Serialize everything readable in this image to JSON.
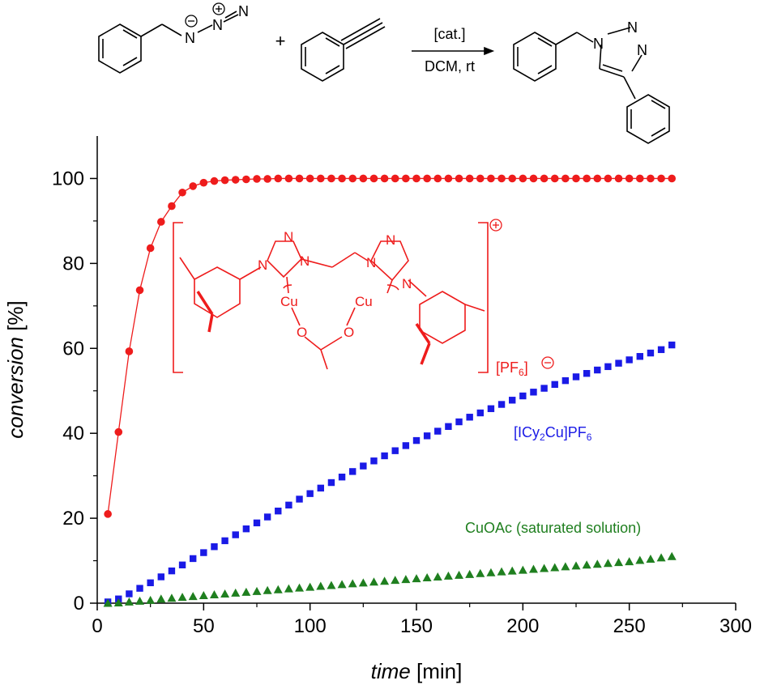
{
  "scheme": {
    "reagent_condition_top": "[cat.]",
    "reagent_condition_bottom": "DCM, rt",
    "plus": "+",
    "azide_atom_n1": "N",
    "azide_atom_n2": "N",
    "azide_atom_n3": "N",
    "product_n1": "N",
    "product_n2": "N",
    "product_n3": "N"
  },
  "catalyst_structure": {
    "cu_left": "Cu",
    "cu_right": "Cu",
    "o_left": "O",
    "o_right": "O",
    "n_labels": [
      "N",
      "N",
      "N",
      "N",
      "N",
      "N"
    ],
    "counterion": "[PF6]"
  },
  "colors": {
    "red": "#ee1c1c",
    "blue": "#1a1ae6",
    "green": "#1f7f1f",
    "black": "#000000"
  },
  "chart_data": {
    "type": "scatter",
    "xlabel": "time [min]",
    "ylabel": "conversion [%]",
    "xlim": [
      0,
      300
    ],
    "ylim": [
      0,
      110
    ],
    "xticks": [
      0,
      50,
      100,
      150,
      200,
      250,
      300
    ],
    "yticks": [
      0,
      20,
      40,
      60,
      80,
      100
    ],
    "grid": false,
    "series": [
      {
        "name": "[PF6]",
        "marker": "circle",
        "color": "#ee1c1c",
        "line": true,
        "x": [
          5,
          10,
          15,
          20,
          25,
          30,
          35,
          40,
          45,
          50,
          55,
          60,
          65,
          70,
          75,
          80,
          85,
          90,
          95,
          100,
          105,
          110,
          115,
          120,
          125,
          130,
          135,
          140,
          145,
          150,
          155,
          160,
          165,
          170,
          175,
          180,
          185,
          190,
          195,
          200,
          205,
          210,
          215,
          220,
          225,
          230,
          235,
          240,
          245,
          250,
          255,
          260,
          265,
          270
        ],
        "y": [
          21,
          40.3,
          59.3,
          73.7,
          83.6,
          89.8,
          93.5,
          96.7,
          98.2,
          99.0,
          99.4,
          99.6,
          99.7,
          99.8,
          99.9,
          99.9,
          100,
          100,
          100,
          100,
          100,
          100,
          100,
          100,
          100,
          100,
          100,
          100,
          100,
          100,
          100,
          100,
          100,
          100,
          100,
          100,
          100,
          100,
          100,
          100,
          100,
          100,
          100,
          100,
          100,
          100,
          100,
          100,
          100,
          100,
          100,
          100,
          100,
          100
        ]
      },
      {
        "name": "[ICy2Cu]PF6",
        "marker": "square",
        "color": "#1a1ae6",
        "line": false,
        "x": [
          5,
          10,
          15,
          20,
          25,
          30,
          35,
          40,
          45,
          50,
          55,
          60,
          65,
          70,
          75,
          80,
          85,
          90,
          95,
          100,
          105,
          110,
          115,
          120,
          125,
          130,
          135,
          140,
          145,
          150,
          155,
          160,
          165,
          170,
          175,
          180,
          185,
          190,
          195,
          200,
          205,
          210,
          215,
          220,
          225,
          230,
          235,
          240,
          245,
          250,
          255,
          260,
          265,
          270
        ],
        "y": [
          0.3,
          1.0,
          2.2,
          3.5,
          4.8,
          6.2,
          7.6,
          9.0,
          10.5,
          11.9,
          13.3,
          14.7,
          16.1,
          17.5,
          18.9,
          20.3,
          21.7,
          23.1,
          24.5,
          25.8,
          27.1,
          28.4,
          29.7,
          31.0,
          32.3,
          33.5,
          34.7,
          35.9,
          37.1,
          38.3,
          39.4,
          40.5,
          41.6,
          42.7,
          43.8,
          44.8,
          45.8,
          46.8,
          47.8,
          48.8,
          49.7,
          50.6,
          51.5,
          52.4,
          53.3,
          54.1,
          54.9,
          55.7,
          56.5,
          57.3,
          58.1,
          58.9,
          59.7,
          60.8
        ]
      },
      {
        "name": "CuOAc (saturated solution)",
        "marker": "triangle",
        "color": "#1f7f1f",
        "line": false,
        "x": [
          5,
          10,
          15,
          20,
          25,
          30,
          35,
          40,
          45,
          50,
          55,
          60,
          65,
          70,
          75,
          80,
          85,
          90,
          95,
          100,
          105,
          110,
          115,
          120,
          125,
          130,
          135,
          140,
          145,
          150,
          155,
          160,
          165,
          170,
          175,
          180,
          185,
          190,
          195,
          200,
          205,
          210,
          215,
          220,
          225,
          230,
          235,
          240,
          245,
          250,
          255,
          260,
          265,
          270
        ],
        "y": [
          0,
          0.1,
          0.3,
          0.5,
          0.7,
          1.0,
          1.2,
          1.4,
          1.6,
          1.8,
          2.0,
          2.2,
          2.4,
          2.6,
          2.8,
          3.0,
          3.2,
          3.4,
          3.6,
          3.8,
          4.0,
          4.2,
          4.4,
          4.6,
          4.8,
          5.0,
          5.2,
          5.4,
          5.6,
          5.8,
          6.0,
          6.2,
          6.4,
          6.6,
          6.8,
          7.0,
          7.2,
          7.4,
          7.6,
          7.8,
          8.0,
          8.2,
          8.4,
          8.6,
          8.8,
          9.0,
          9.2,
          9.4,
          9.6,
          9.8,
          10.1,
          10.4,
          10.7,
          11.0
        ]
      }
    ]
  }
}
